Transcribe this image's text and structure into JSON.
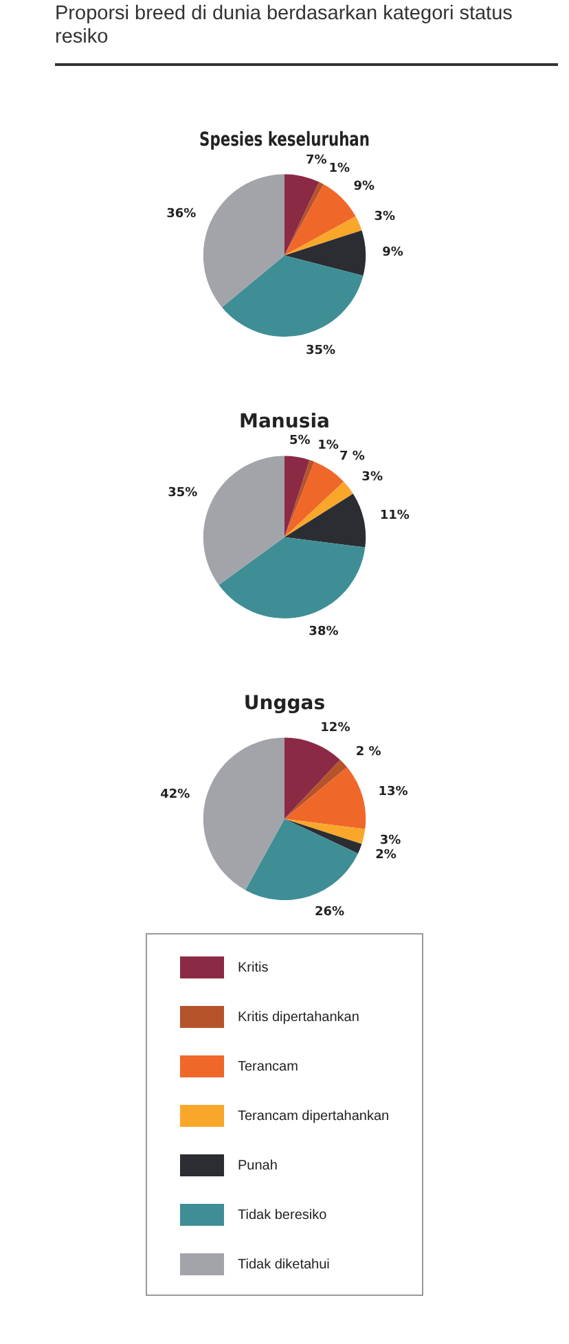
{
  "chart_data": [
    {
      "type": "pie",
      "title": "Proporsi breed di dunia berdasarkan kategori status resiko",
      "subtitle": "Spesies keseluruhan",
      "categories": [
        null,
        null,
        null,
        null,
        null,
        null,
        null
      ],
      "values": [
        7,
        1,
        9,
        3,
        9,
        35,
        36
      ],
      "value_labels": [
        "7%",
        "1%",
        "9%",
        "3%",
        "9%",
        "35%",
        "36%"
      ],
      "colors": [
        "#8b2a45",
        "#b5532a",
        "#f0672a",
        "#f9a72b",
        "#2b2d33",
        "#3f8e96",
        "#a2a4aa"
      ]
    },
    {
      "type": "pie",
      "title": "Manusia",
      "categories": [
        null,
        null,
        null,
        null,
        null,
        null,
        null
      ],
      "values": [
        5,
        1,
        7,
        3,
        11,
        38,
        35
      ],
      "value_labels": [
        "5%",
        "1%",
        "7 %",
        "3%",
        "11%",
        "38%",
        "35%"
      ],
      "colors": [
        "#8b2a45",
        "#b5532a",
        "#f0672a",
        "#f9a72b",
        "#2b2d33",
        "#3f8e96",
        "#a2a4aa"
      ]
    },
    {
      "type": "pie",
      "title": "Unggas",
      "categories": [
        "Kritis",
        "Kritis dipertahankan",
        "Terancam",
        "Terancam dipertahankan",
        "Punah",
        "Tidak beresiko",
        "Tidak diketahui"
      ],
      "values": [
        12,
        2,
        13,
        3,
        2,
        26,
        42
      ],
      "value_labels": [
        "12%",
        "2 %",
        "13%",
        "3%",
        "2%",
        "26%",
        "42%"
      ],
      "colors": [
        "#8b2a45",
        "#b5532a",
        "#f0672a",
        "#f9a72b",
        "#2b2d33",
        "#3f8e96",
        "#a2a4aa"
      ],
      "legend": "bottom"
    }
  ]
}
